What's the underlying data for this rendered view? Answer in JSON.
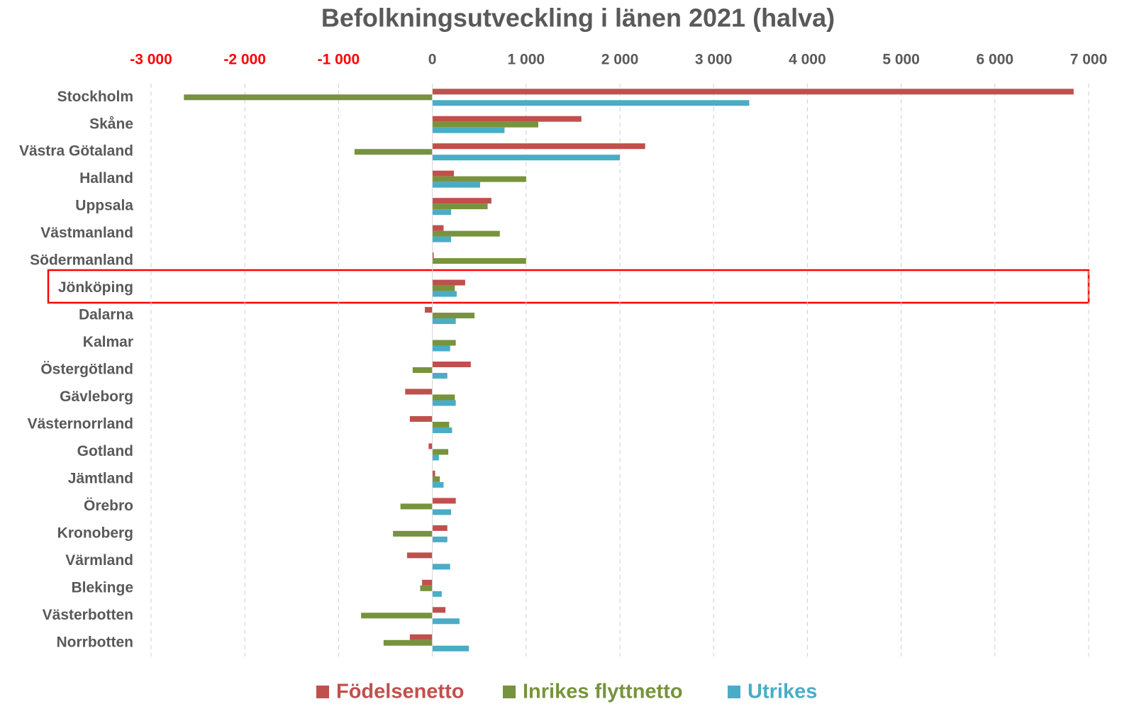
{
  "chart_data": {
    "type": "hbar",
    "title": "Befolkningsutveckling i länen 2021 (halva)",
    "categories": [
      "Stockholm",
      "Skåne",
      "Västra Götaland",
      "Halland",
      "Uppsala",
      "Västmanland",
      "Södermanland",
      "Jönköping",
      "Dalarna",
      "Kalmar",
      "Östergötland",
      "Gävleborg",
      "Västernorrland",
      "Gotland",
      "Jämtland",
      "Örebro",
      "Kronoberg",
      "Värmland",
      "Blekinge",
      "Västerbotten",
      "Norrbotten"
    ],
    "series": [
      {
        "name": "Födelsenetto",
        "color": "#c0504d",
        "values": [
          6840,
          1590,
          2270,
          230,
          630,
          120,
          15,
          350,
          -80,
          0,
          410,
          -290,
          -240,
          -40,
          30,
          250,
          160,
          -270,
          -110,
          140,
          -240
        ]
      },
      {
        "name": "Inrikes flyttnetto",
        "color": "#77933c",
        "values": [
          -2650,
          1130,
          -830,
          1000,
          590,
          720,
          1000,
          240,
          450,
          250,
          -210,
          240,
          180,
          170,
          80,
          -340,
          -420,
          0,
          -130,
          -760,
          -520
        ]
      },
      {
        "name": "Utrikes",
        "color": "#4bacc6",
        "values": [
          3380,
          770,
          2000,
          510,
          200,
          200,
          0,
          260,
          250,
          190,
          160,
          250,
          210,
          70,
          120,
          200,
          160,
          190,
          100,
          290,
          390
        ]
      }
    ],
    "xlim": [
      -3000,
      7000
    ],
    "xticks": [
      {
        "value": -3000,
        "label": "-3 000"
      },
      {
        "value": -2000,
        "label": "-2 000"
      },
      {
        "value": -1000,
        "label": "-1 000"
      },
      0,
      {
        "value": 1000,
        "label": "1 000"
      },
      {
        "value": 2000,
        "label": "2 000"
      },
      {
        "value": 3000,
        "label": "3 000"
      },
      {
        "value": 4000,
        "label": "4 000"
      },
      {
        "value": 5000,
        "label": "5 000"
      },
      {
        "value": 6000,
        "label": "6 000"
      },
      {
        "value": 7000,
        "label": "7 000"
      }
    ],
    "negative_tick_color": "#ff0000",
    "grid": true
  }
}
